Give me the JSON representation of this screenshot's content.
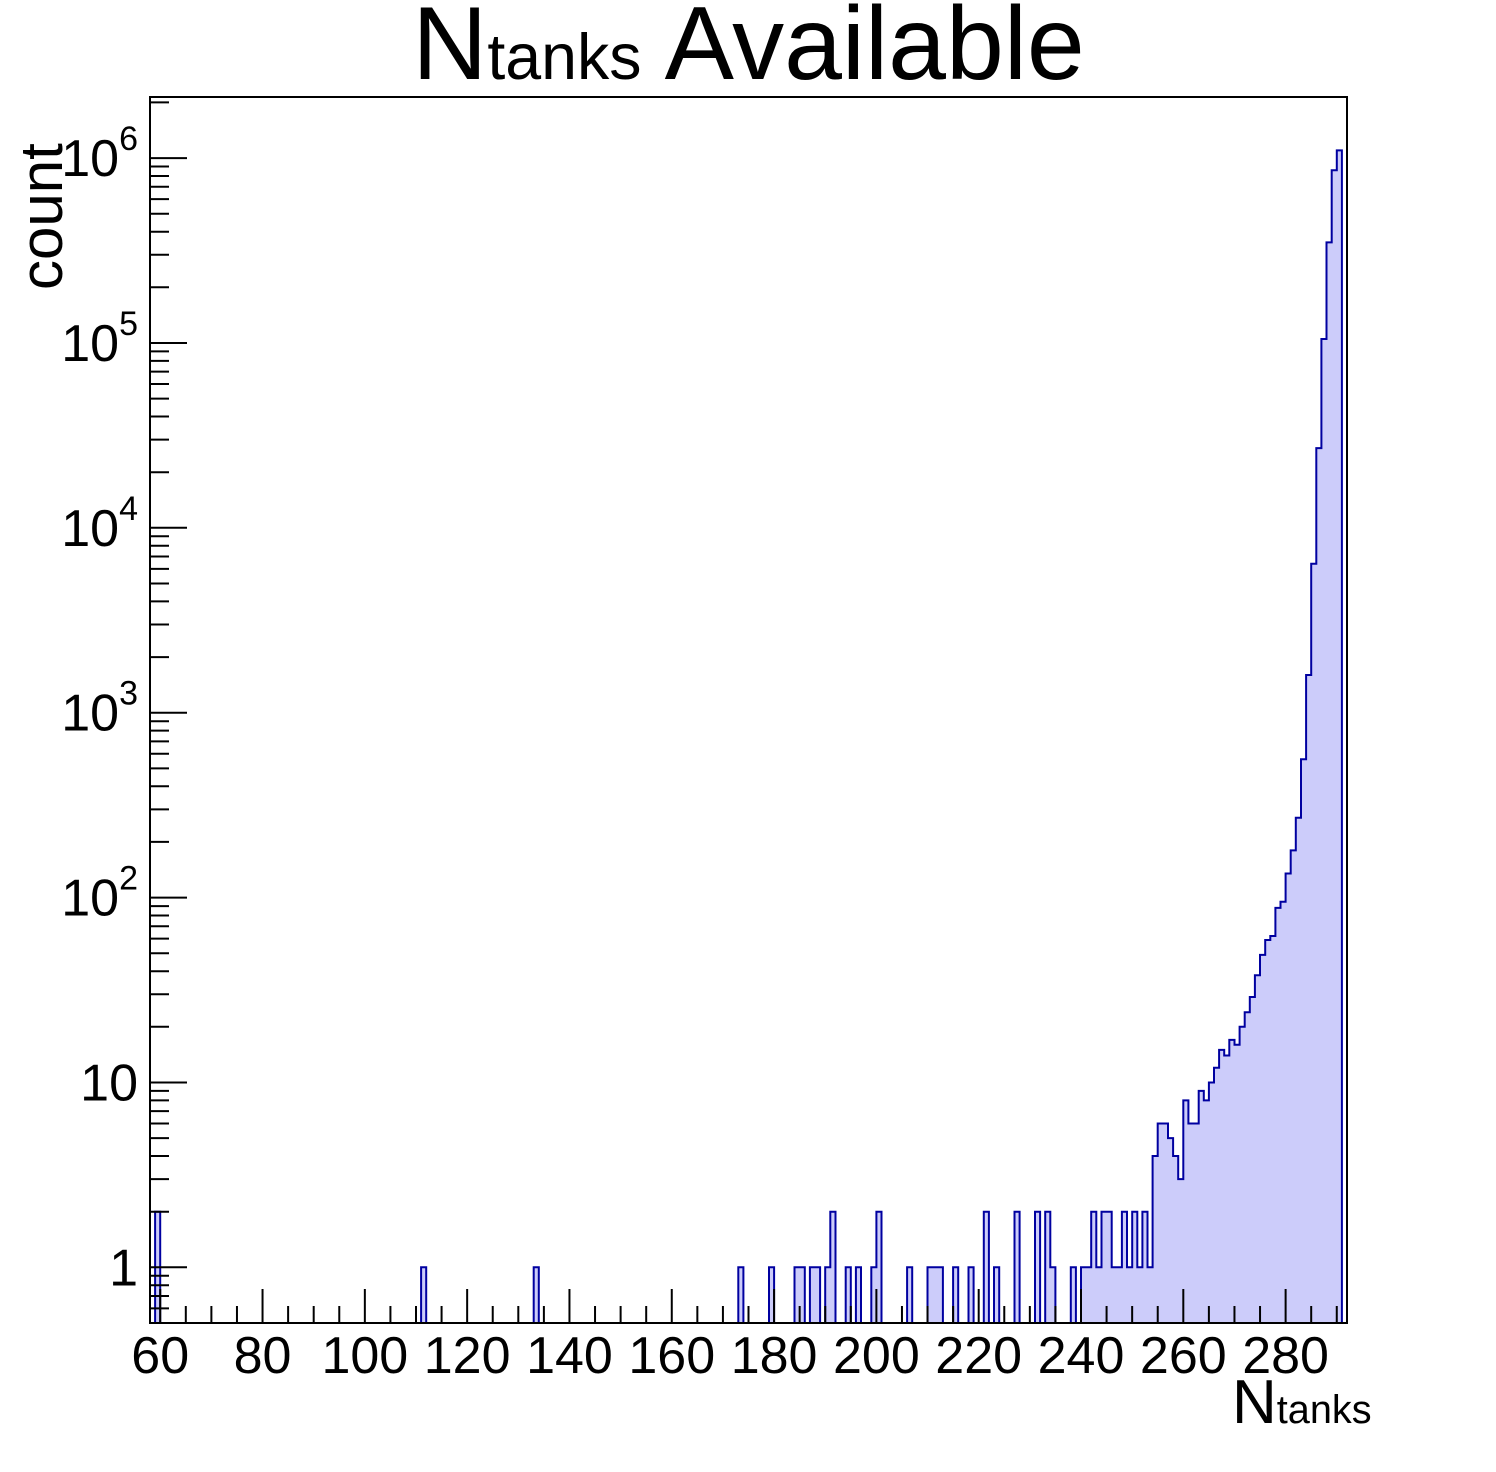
{
  "page": {
    "background": "#ffffff"
  },
  "chart_data": {
    "type": "bar",
    "style": "filled-step-histogram",
    "title": {
      "prefix": "N",
      "subscript": "tanks",
      "suffix": " Available"
    },
    "ylabel": "count",
    "xlabel": {
      "prefix": "N",
      "subscript": "tanks"
    },
    "legend": "none",
    "grid": "off",
    "x_axis": {
      "min": 58,
      "max": 292,
      "major_ticks": [
        60,
        80,
        100,
        120,
        140,
        160,
        180,
        200,
        220,
        240,
        260,
        280
      ],
      "minor_tick_step": 5
    },
    "y_axis": {
      "scale": "log",
      "min": 0.5,
      "max": 2140000,
      "tick_labels": [
        {
          "value": 1,
          "text": "1"
        },
        {
          "value": 10,
          "text": "10"
        },
        {
          "value": 100,
          "base": "10",
          "exp": "2"
        },
        {
          "value": 1000,
          "base": "10",
          "exp": "3"
        },
        {
          "value": 10000,
          "base": "10",
          "exp": "4"
        },
        {
          "value": 100000,
          "base": "10",
          "exp": "5"
        },
        {
          "value": 1000000,
          "base": "10",
          "exp": "6"
        }
      ]
    },
    "bin_width": 1,
    "bins": [
      [
        59,
        2
      ],
      [
        111,
        1
      ],
      [
        133,
        1
      ],
      [
        173,
        1
      ],
      [
        179,
        1
      ],
      [
        184,
        1
      ],
      [
        185,
        1
      ],
      [
        187,
        1
      ],
      [
        188,
        1
      ],
      [
        190,
        1
      ],
      [
        191,
        2
      ],
      [
        194,
        1
      ],
      [
        196,
        1
      ],
      [
        199,
        1
      ],
      [
        200,
        2
      ],
      [
        206,
        1
      ],
      [
        210,
        1
      ],
      [
        211,
        1
      ],
      [
        212,
        1
      ],
      [
        215,
        1
      ],
      [
        218,
        1
      ],
      [
        221,
        2
      ],
      [
        223,
        1
      ],
      [
        227,
        2
      ],
      [
        231,
        2
      ],
      [
        233,
        2
      ],
      [
        234,
        1
      ],
      [
        238,
        1
      ],
      [
        240,
        1
      ],
      [
        241,
        1
      ],
      [
        242,
        2
      ],
      [
        243,
        1
      ],
      [
        244,
        2
      ],
      [
        245,
        2
      ],
      [
        246,
        1
      ],
      [
        247,
        1
      ],
      [
        248,
        2
      ],
      [
        249,
        1
      ],
      [
        250,
        2
      ],
      [
        251,
        1
      ],
      [
        252,
        2
      ],
      [
        253,
        1
      ],
      [
        254,
        4
      ],
      [
        255,
        6
      ],
      [
        256,
        6
      ],
      [
        257,
        5
      ],
      [
        258,
        4
      ],
      [
        259,
        3
      ],
      [
        260,
        8
      ],
      [
        261,
        6
      ],
      [
        262,
        6
      ],
      [
        263,
        9
      ],
      [
        264,
        8
      ],
      [
        265,
        10
      ],
      [
        266,
        12
      ],
      [
        267,
        15
      ],
      [
        268,
        14
      ],
      [
        269,
        17
      ],
      [
        270,
        16
      ],
      [
        271,
        20
      ],
      [
        272,
        24
      ],
      [
        273,
        29
      ],
      [
        274,
        38
      ],
      [
        275,
        49
      ],
      [
        276,
        59
      ],
      [
        277,
        62
      ],
      [
        278,
        88
      ],
      [
        279,
        95
      ],
      [
        280,
        135
      ],
      [
        281,
        180
      ],
      [
        282,
        270
      ],
      [
        283,
        560
      ],
      [
        284,
        1600
      ],
      [
        285,
        6400
      ],
      [
        286,
        27000
      ],
      [
        287,
        105000
      ],
      [
        288,
        350000
      ],
      [
        289,
        860000
      ],
      [
        290,
        1100000
      ]
    ],
    "colors": {
      "fill": "#ccccfa",
      "line": "#0000a0",
      "frame": "#000000",
      "text": "#000000"
    }
  }
}
